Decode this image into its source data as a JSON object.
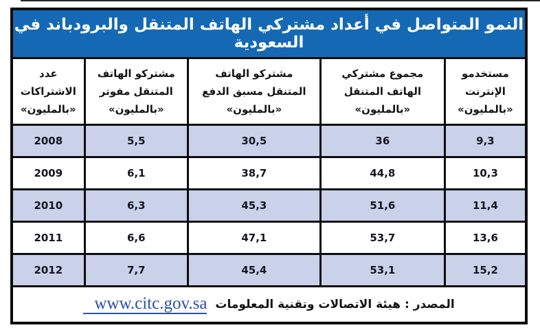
{
  "title": "النمو المتواصل في أعداد مشتركي الهاتف المتنقل والبرودباند في السعودية",
  "table": {
    "columns": [
      {
        "label": "عدد\nالاشتراكات\n«بالمليون»"
      },
      {
        "label": "مشتركو الهاتف\nالمتنقل مفوتر\n«بالمليون»"
      },
      {
        "label": "مشتركو الهاتف\nالمتنقل مسبق الدفع\n«بالمليون»"
      },
      {
        "label": "مجموع مشتركي\nالهاتف المتنقل\n«بالمليون»"
      },
      {
        "label": "مستخدمو\nالإنترنت\n«بالمليون»"
      }
    ],
    "rows": [
      [
        "2008",
        "5,5",
        "30,5",
        "36",
        "9,3"
      ],
      [
        "2009",
        "6,1",
        "38,7",
        "44,8",
        "10,3"
      ],
      [
        "2010",
        "6,3",
        "45,3",
        "51,6",
        "11,4"
      ],
      [
        "2011",
        "6,6",
        "47,1",
        "53,7",
        "13,6"
      ],
      [
        "2012",
        "7,7",
        "45,4",
        "53,1",
        "15,2"
      ]
    ]
  },
  "footer": {
    "source_label": "المصدر : هيئة الاتصالات وتقنية المعلومات",
    "link_text": "www.citc.gov.sa"
  },
  "colors": {
    "banner_blue": "#1569b4",
    "row_alt_blue": "#c9d2e8",
    "border_black": "#0c0c0c",
    "link_blue": "#2b50a5"
  },
  "chart_data": {
    "type": "table",
    "title": "النمو المتواصل في أعداد مشتركي الهاتف المتنقل والبرودباند في السعودية",
    "categories": [
      "2008",
      "2009",
      "2010",
      "2011",
      "2012"
    ],
    "categories_column_label": "عدد الاشتراكات «بالمليون»",
    "series": [
      {
        "name": "مشتركو الهاتف المتنقل مفوتر «بالمليون»",
        "values": [
          5.5,
          6.1,
          6.3,
          6.6,
          7.7
        ]
      },
      {
        "name": "مشتركو الهاتف المتنقل مسبق الدفع «بالمليون»",
        "values": [
          30.5,
          38.7,
          45.3,
          47.1,
          45.4
        ]
      },
      {
        "name": "مجموع مشتركي الهاتف المتنقل «بالمليون»",
        "values": [
          36,
          44.8,
          51.6,
          53.7,
          53.1
        ]
      },
      {
        "name": "مستخدمو الإنترنت «بالمليون»",
        "values": [
          9.3,
          10.3,
          11.4,
          13.6,
          15.2
        ]
      }
    ],
    "source": "المصدر : هيئة الاتصالات وتقنية المعلومات www.citc.gov.sa",
    "layout": {
      "direction": "rtl",
      "alternating_row_shading": true,
      "grid": true
    }
  }
}
